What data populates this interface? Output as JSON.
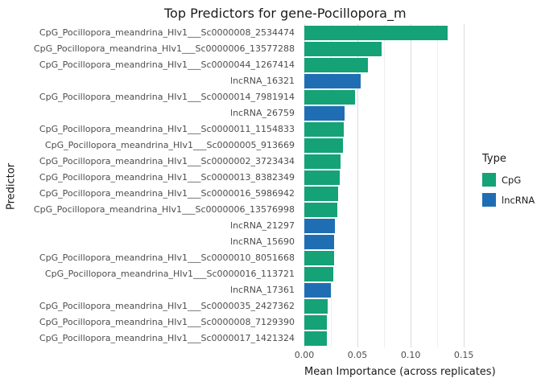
{
  "chart_data": {
    "type": "bar",
    "orientation": "horizontal",
    "title": "Top Predictors for gene-Pocillopora_m",
    "xlabel": "Mean Importance (across replicates)",
    "ylabel": "Predictor",
    "legend_title": "Type",
    "legend_position": "right",
    "grid": true,
    "xlim": [
      0,
      0.162
    ],
    "x_tick_values": [
      0,
      0.05,
      0.1,
      0.15
    ],
    "x_tick_labels": [
      "0.00",
      "0.05",
      "0.10",
      "0.15"
    ],
    "groups": [
      {
        "name": "CpG",
        "color": "#14a276"
      },
      {
        "name": "lncRNA",
        "color": "#1f6eb4"
      }
    ],
    "bars": [
      {
        "label": "CpG_Pocillopora_meandrina_HIv1___Sc0000008_2534474",
        "type": "CpG",
        "value": 0.135
      },
      {
        "label": "CpG_Pocillopora_meandrina_HIv1___Sc0000006_13577288",
        "type": "CpG",
        "value": 0.073
      },
      {
        "label": "CpG_Pocillopora_meandrina_HIv1___Sc0000044_1267414",
        "type": "CpG",
        "value": 0.06
      },
      {
        "label": "lncRNA_16321",
        "type": "lncRNA",
        "value": 0.053
      },
      {
        "label": "CpG_Pocillopora_meandrina_HIv1___Sc0000014_7981914",
        "type": "CpG",
        "value": 0.048
      },
      {
        "label": "lncRNA_26759",
        "type": "lncRNA",
        "value": 0.038
      },
      {
        "label": "CpG_Pocillopora_meandrina_HIv1___Sc0000011_1154833",
        "type": "CpG",
        "value": 0.037
      },
      {
        "label": "CpG_Pocillopora_meandrina_HIv1___Sc0000005_913669",
        "type": "CpG",
        "value": 0.036
      },
      {
        "label": "CpG_Pocillopora_meandrina_HIv1___Sc0000002_3723434",
        "type": "CpG",
        "value": 0.034
      },
      {
        "label": "CpG_Pocillopora_meandrina_HIv1___Sc0000013_8382349",
        "type": "CpG",
        "value": 0.033
      },
      {
        "label": "CpG_Pocillopora_meandrina_HIv1___Sc0000016_5986942",
        "type": "CpG",
        "value": 0.032
      },
      {
        "label": "CpG_Pocillopora_meandrina_HIv1___Sc0000006_13576998",
        "type": "CpG",
        "value": 0.031
      },
      {
        "label": "lncRNA_21297",
        "type": "lncRNA",
        "value": 0.029
      },
      {
        "label": "lncRNA_15690",
        "type": "lncRNA",
        "value": 0.028
      },
      {
        "label": "CpG_Pocillopora_meandrina_HIv1___Sc0000010_8051668",
        "type": "CpG",
        "value": 0.028
      },
      {
        "label": "CpG_Pocillopora_meandrina_HIv1___Sc0000016_113721",
        "type": "CpG",
        "value": 0.027
      },
      {
        "label": "lncRNA_17361",
        "type": "lncRNA",
        "value": 0.025
      },
      {
        "label": "CpG_Pocillopora_meandrina_HIv1___Sc0000035_2427362",
        "type": "CpG",
        "value": 0.022
      },
      {
        "label": "CpG_Pocillopora_meandrina_HIv1___Sc0000008_7129390",
        "type": "CpG",
        "value": 0.021
      },
      {
        "label": "CpG_Pocillopora_meandrina_HIv1___Sc0000017_1421324",
        "type": "CpG",
        "value": 0.021
      }
    ]
  }
}
